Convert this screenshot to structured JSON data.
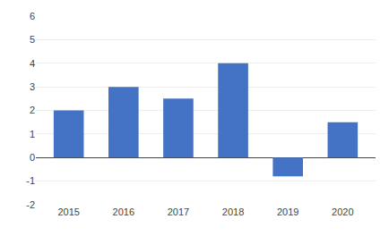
{
  "chart_data": {
    "type": "bar",
    "categories": [
      "2015",
      "2016",
      "2017",
      "2018",
      "2019",
      "2020"
    ],
    "values": [
      2.0,
      3.0,
      2.5,
      4.0,
      -0.8,
      1.5
    ],
    "color": "#4472C4",
    "ylim": [
      -2,
      6
    ],
    "yticks": [
      -2,
      -1,
      0,
      1,
      2,
      3,
      4,
      5,
      6
    ],
    "grid": true
  }
}
